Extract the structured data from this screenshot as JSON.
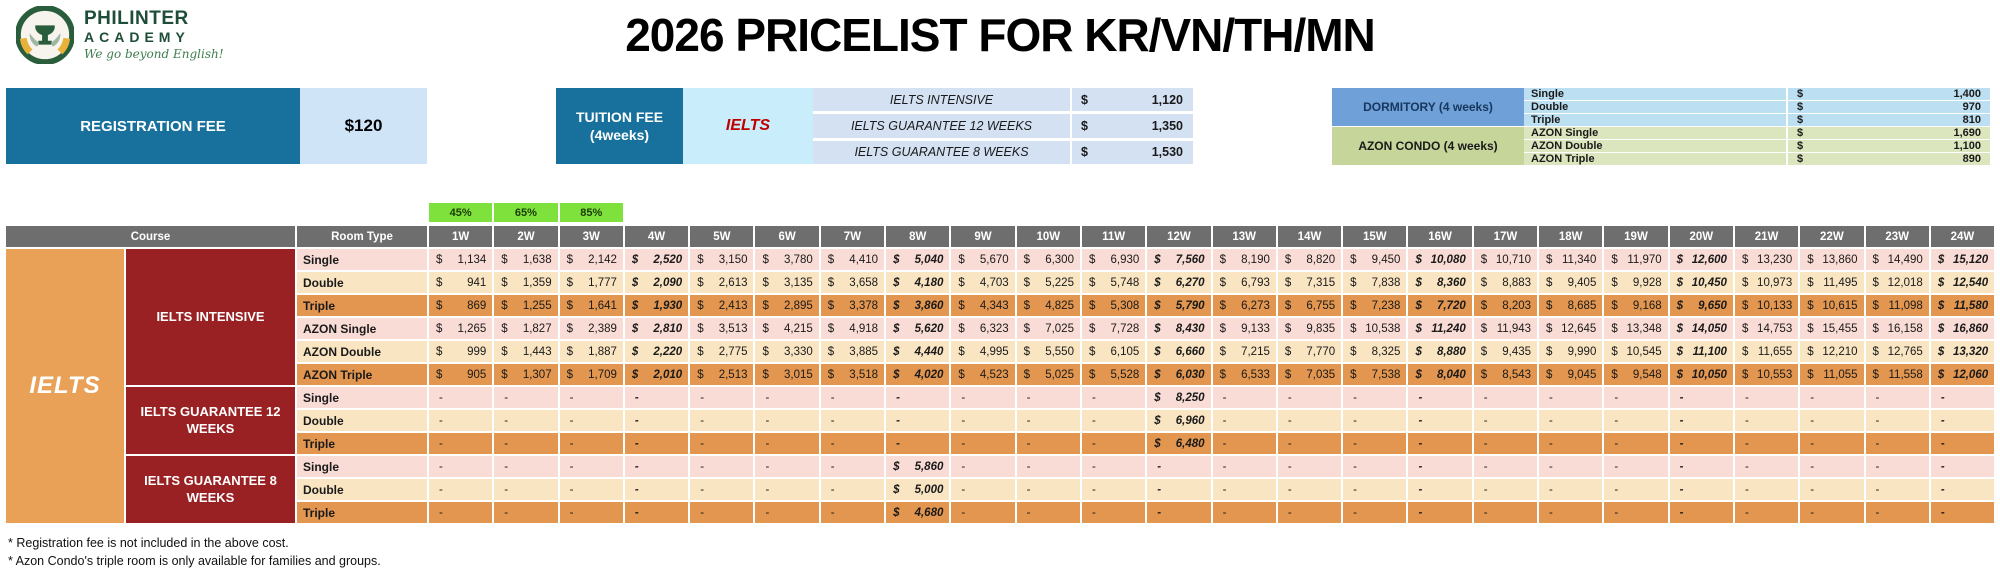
{
  "header": {
    "logo": {
      "name": "PHILINTER",
      "sub": "ACADEMY",
      "tagline": "We go beyond English!"
    },
    "title": "2026 PRICELIST FOR KR/VN/TH/MN"
  },
  "colors": {
    "teal": "#17719C",
    "pale_blue": "#CFE4F7",
    "cyan": "#C9EDFA",
    "tuition_row": "#D3E1F3",
    "dorm_label": "#6FA0D8",
    "dorm_row": "#BCE0F2",
    "azon_label": "#C6D69A",
    "azon_row": "#DCE6BE",
    "header_gray": "#6E6E6E",
    "discount_green": "#7EE13C",
    "group_orange": "#E8A156",
    "course_red": "#9A2123",
    "row_pink": "#FADCD6",
    "row_cream": "#FAE5C2",
    "row_orange": "#E2964F"
  },
  "fees": {
    "registration": {
      "label": "REGISTRATION FEE",
      "value": "$120"
    },
    "tuition": {
      "label_line1": "TUITION FEE",
      "label_line2": "(4weeks)",
      "group": "IELTS",
      "rows": [
        {
          "name": "IELTS INTENSIVE",
          "currency": "$",
          "amount": "1,120"
        },
        {
          "name": "IELTS GUARANTEE 12 WEEKS",
          "currency": "$",
          "amount": "1,350"
        },
        {
          "name": "IELTS GUARANTEE 8 WEEKS",
          "currency": "$",
          "amount": "1,530"
        }
      ]
    },
    "accommodation": [
      {
        "label": "DORMITORY (4 weeks)",
        "type": "dorm",
        "rows": [
          {
            "name": "Single",
            "currency": "$",
            "amount": "1,400"
          },
          {
            "name": "Double",
            "currency": "$",
            "amount": "970"
          },
          {
            "name": "Triple",
            "currency": "$",
            "amount": "810"
          }
        ]
      },
      {
        "label": "AZON CONDO (4 weeks)",
        "type": "azon",
        "rows": [
          {
            "name": "AZON Single",
            "currency": "$",
            "amount": "1,690"
          },
          {
            "name": "AZON Double",
            "currency": "$",
            "amount": "1,100"
          },
          {
            "name": "AZON Triple",
            "currency": "$",
            "amount": "890"
          }
        ]
      }
    ]
  },
  "discounts": [
    "45%",
    "65%",
    "85%"
  ],
  "main_table": {
    "headers": {
      "course": "Course",
      "room_type": "Room Type",
      "weeks": [
        "1W",
        "2W",
        "3W",
        "4W",
        "5W",
        "6W",
        "7W",
        "8W",
        "9W",
        "10W",
        "11W",
        "12W",
        "13W",
        "14W",
        "15W",
        "16W",
        "17W",
        "18W",
        "19W",
        "20W",
        "21W",
        "22W",
        "23W",
        "24W"
      ]
    },
    "group_label": "IELTS",
    "currency": "$",
    "empty": "-",
    "emphasized_week_indexes": [
      3,
      7,
      11,
      15,
      19,
      23
    ],
    "sections": [
      {
        "course": "IELTS INTENSIVE",
        "rows": [
          {
            "room": "Single",
            "tone": "pink",
            "values": [
              "1,134",
              "1,638",
              "2,142",
              "2,520",
              "3,150",
              "3,780",
              "4,410",
              "5,040",
              "5,670",
              "6,300",
              "6,930",
              "7,560",
              "8,190",
              "8,820",
              "9,450",
              "10,080",
              "10,710",
              "11,340",
              "11,970",
              "12,600",
              "13,230",
              "13,860",
              "14,490",
              "15,120"
            ]
          },
          {
            "room": "Double",
            "tone": "cream",
            "values": [
              "941",
              "1,359",
              "1,777",
              "2,090",
              "2,613",
              "3,135",
              "3,658",
              "4,180",
              "4,703",
              "5,225",
              "5,748",
              "6,270",
              "6,793",
              "7,315",
              "7,838",
              "8,360",
              "8,883",
              "9,405",
              "9,928",
              "10,450",
              "10,973",
              "11,495",
              "12,018",
              "12,540"
            ]
          },
          {
            "room": "Triple",
            "tone": "orange",
            "values": [
              "869",
              "1,255",
              "1,641",
              "1,930",
              "2,413",
              "2,895",
              "3,378",
              "3,860",
              "4,343",
              "4,825",
              "5,308",
              "5,790",
              "6,273",
              "6,755",
              "7,238",
              "7,720",
              "8,203",
              "8,685",
              "9,168",
              "9,650",
              "10,133",
              "10,615",
              "11,098",
              "11,580"
            ]
          },
          {
            "room": "AZON Single",
            "tone": "pink",
            "values": [
              "1,265",
              "1,827",
              "2,389",
              "2,810",
              "3,513",
              "4,215",
              "4,918",
              "5,620",
              "6,323",
              "7,025",
              "7,728",
              "8,430",
              "9,133",
              "9,835",
              "10,538",
              "11,240",
              "11,943",
              "12,645",
              "13,348",
              "14,050",
              "14,753",
              "15,455",
              "16,158",
              "16,860"
            ]
          },
          {
            "room": "AZON Double",
            "tone": "cream",
            "values": [
              "999",
              "1,443",
              "1,887",
              "2,220",
              "2,775",
              "3,330",
              "3,885",
              "4,440",
              "4,995",
              "5,550",
              "6,105",
              "6,660",
              "7,215",
              "7,770",
              "8,325",
              "8,880",
              "9,435",
              "9,990",
              "10,545",
              "11,100",
              "11,655",
              "12,210",
              "12,765",
              "13,320"
            ]
          },
          {
            "room": "AZON Triple",
            "tone": "orange",
            "values": [
              "905",
              "1,307",
              "1,709",
              "2,010",
              "2,513",
              "3,015",
              "3,518",
              "4,020",
              "4,523",
              "5,025",
              "5,528",
              "6,030",
              "6,533",
              "7,035",
              "7,538",
              "8,040",
              "8,543",
              "9,045",
              "9,548",
              "10,050",
              "10,553",
              "11,055",
              "11,558",
              "12,060"
            ]
          }
        ]
      },
      {
        "course": "IELTS GUARANTEE 12 WEEKS",
        "rows": [
          {
            "room": "Single",
            "tone": "pink",
            "values": [
              "-",
              "-",
              "-",
              "-",
              "-",
              "-",
              "-",
              "-",
              "-",
              "-",
              "-",
              "8,250",
              "-",
              "-",
              "-",
              "-",
              "-",
              "-",
              "-",
              "-",
              "-",
              "-",
              "-",
              "-"
            ]
          },
          {
            "room": "Double",
            "tone": "cream",
            "values": [
              "-",
              "-",
              "-",
              "-",
              "-",
              "-",
              "-",
              "-",
              "-",
              "-",
              "-",
              "6,960",
              "-",
              "-",
              "-",
              "-",
              "-",
              "-",
              "-",
              "-",
              "-",
              "-",
              "-",
              "-"
            ]
          },
          {
            "room": "Triple",
            "tone": "orange",
            "values": [
              "-",
              "-",
              "-",
              "-",
              "-",
              "-",
              "-",
              "-",
              "-",
              "-",
              "-",
              "6,480",
              "-",
              "-",
              "-",
              "-",
              "-",
              "-",
              "-",
              "-",
              "-",
              "-",
              "-",
              "-"
            ]
          }
        ]
      },
      {
        "course": "IELTS GUARANTEE 8 WEEKS",
        "rows": [
          {
            "room": "Single",
            "tone": "pink",
            "values": [
              "-",
              "-",
              "-",
              "-",
              "-",
              "-",
              "-",
              "5,860",
              "-",
              "-",
              "-",
              "-",
              "-",
              "-",
              "-",
              "-",
              "-",
              "-",
              "-",
              "-",
              "-",
              "-",
              "-",
              "-"
            ]
          },
          {
            "room": "Double",
            "tone": "cream",
            "values": [
              "-",
              "-",
              "-",
              "-",
              "-",
              "-",
              "-",
              "5,000",
              "-",
              "-",
              "-",
              "-",
              "-",
              "-",
              "-",
              "-",
              "-",
              "-",
              "-",
              "-",
              "-",
              "-",
              "-",
              "-"
            ]
          },
          {
            "room": "Triple",
            "tone": "orange",
            "values": [
              "-",
              "-",
              "-",
              "-",
              "-",
              "-",
              "-",
              "4,680",
              "-",
              "-",
              "-",
              "-",
              "-",
              "-",
              "-",
              "-",
              "-",
              "-",
              "-",
              "-",
              "-",
              "-",
              "-",
              "-"
            ]
          }
        ]
      }
    ]
  },
  "notes": [
    "* Registration fee is not included in the above cost.",
    "* Azon Condo's triple room is only available for families and groups."
  ]
}
